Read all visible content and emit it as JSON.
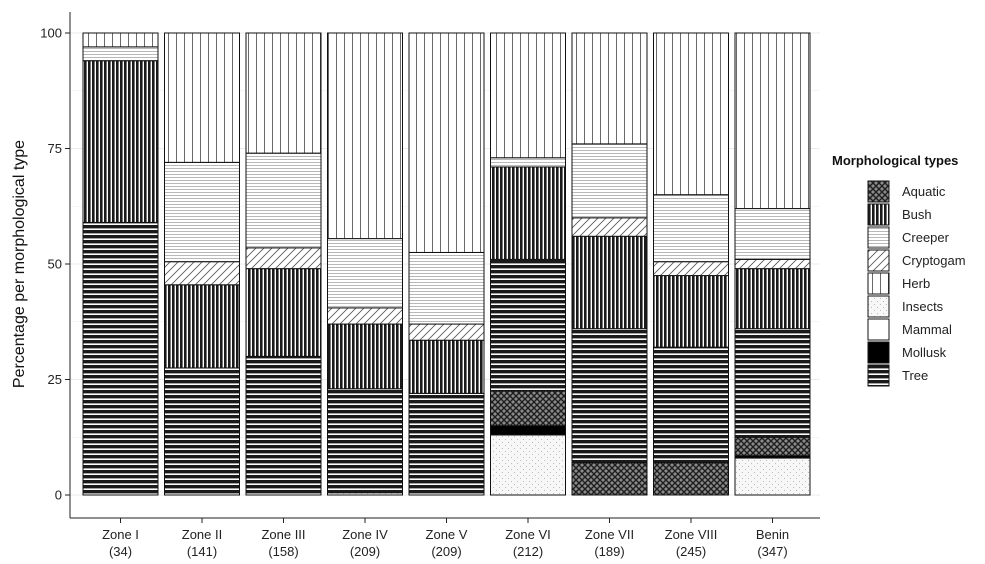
{
  "chart_data": {
    "type": "bar",
    "stacked": true,
    "ylabel": "Percentage per morphological type",
    "xlabel": "",
    "ylim": [
      0,
      100
    ],
    "yticks": [
      0,
      25,
      50,
      75,
      100
    ],
    "grid": true,
    "legend_position": "right",
    "legend_title": "Morphological types",
    "categories": [
      {
        "name": "Zone I",
        "n": "(34)"
      },
      {
        "name": "Zone II",
        "n": "(141)"
      },
      {
        "name": "Zone III",
        "n": "(158)"
      },
      {
        "name": "Zone IV",
        "n": "(209)"
      },
      {
        "name": "Zone V",
        "n": "(209)"
      },
      {
        "name": "Zone VI",
        "n": "(212)"
      },
      {
        "name": "Zone VII",
        "n": "(189)"
      },
      {
        "name": "Zone VIII",
        "n": "(245)"
      },
      {
        "name": "Benin",
        "n": "(347)"
      }
    ],
    "series": [
      {
        "name": "Aquatic",
        "values": [
          0,
          0,
          0,
          0,
          0,
          7.5,
          7,
          7,
          4
        ]
      },
      {
        "name": "Bush",
        "values": [
          35,
          18,
          19,
          14,
          11.5,
          20,
          20,
          15.5,
          13
        ]
      },
      {
        "name": "Creeper",
        "values": [
          3,
          21.5,
          20.5,
          15,
          15.5,
          2,
          16,
          14.5,
          11
        ]
      },
      {
        "name": "Cryptogam",
        "values": [
          0,
          5,
          4.5,
          3.5,
          3.5,
          0,
          4,
          3,
          2
        ]
      },
      {
        "name": "Herb",
        "values": [
          3,
          28,
          26,
          44.5,
          47.5,
          27,
          24,
          35,
          38
        ]
      },
      {
        "name": "Insects",
        "values": [
          0,
          0,
          0,
          0.5,
          0,
          13,
          0,
          0,
          8
        ]
      },
      {
        "name": "Mammal",
        "values": [
          0,
          0,
          0,
          0,
          0,
          0,
          0,
          0,
          0
        ]
      },
      {
        "name": "Mollusk",
        "values": [
          0,
          0,
          0,
          0,
          0,
          2,
          0,
          0,
          0.5
        ]
      },
      {
        "name": "Tree",
        "values": [
          59,
          27.5,
          30,
          22.5,
          22,
          28.5,
          29,
          25,
          23.5
        ]
      }
    ],
    "stack_order_bottom_to_top": [
      "Insects",
      "Mollusk",
      "Aquatic",
      "Tree",
      "Bush",
      "Cryptogam",
      "Creeper",
      "Herb"
    ]
  }
}
